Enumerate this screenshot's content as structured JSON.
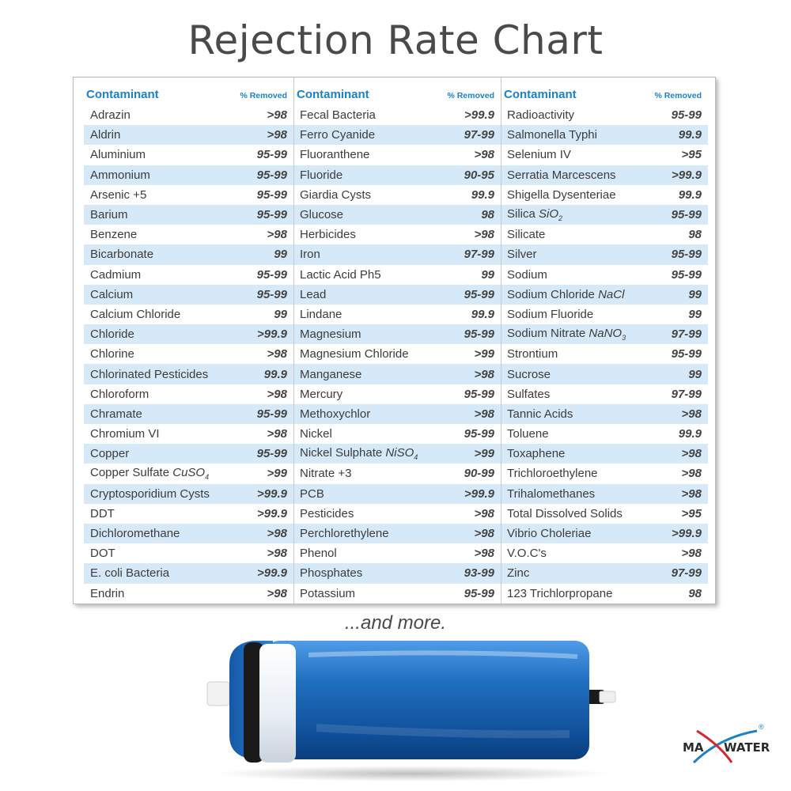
{
  "title": "Rejection Rate Chart",
  "header": {
    "contaminant": "Contaminant",
    "removed": "% Removed"
  },
  "columns": [
    {
      "rows": [
        {
          "name": "Adrazin",
          "value": ">98"
        },
        {
          "name": "Aldrin",
          "value": ">98"
        },
        {
          "name": "Aluminium",
          "value": "95-99"
        },
        {
          "name": "Ammonium",
          "value": "95-99"
        },
        {
          "name": "Arsenic +5",
          "value": "95-99"
        },
        {
          "name": "Barium",
          "value": "95-99"
        },
        {
          "name": "Benzene",
          "value": ">98"
        },
        {
          "name": "Bicarbonate",
          "value": "99"
        },
        {
          "name": "Cadmium",
          "value": "95-99"
        },
        {
          "name": "Calcium",
          "value": "95-99"
        },
        {
          "name": "Calcium Chloride",
          "value": "99"
        },
        {
          "name": "Chloride",
          "value": ">99.9"
        },
        {
          "name": "Chlorine",
          "value": ">98"
        },
        {
          "name": "Chlorinated Pesticides",
          "value": "99.9"
        },
        {
          "name": "Chloroform",
          "value": ">98"
        },
        {
          "name": "Chramate",
          "value": "95-99"
        },
        {
          "name": "Chromium VI",
          "value": ">98"
        },
        {
          "name": "Copper",
          "value": "95-99"
        },
        {
          "name": "Copper Sulfate",
          "formula": "CuSO",
          "sub": "4",
          "value": ">99"
        },
        {
          "name": "Cryptosporidium Cysts",
          "value": ">99.9"
        },
        {
          "name": "DDT",
          "value": ">99.9"
        },
        {
          "name": "Dichloromethane",
          "value": ">98"
        },
        {
          "name": "DOT",
          "value": ">98"
        },
        {
          "name": "E. coli Bacteria",
          "value": ">99.9"
        },
        {
          "name": "Endrin",
          "value": ">98"
        }
      ]
    },
    {
      "rows": [
        {
          "name": "Fecal Bacteria",
          "value": ">99.9"
        },
        {
          "name": "Ferro Cyanide",
          "value": "97-99"
        },
        {
          "name": "Fluoranthene",
          "value": ">98"
        },
        {
          "name": "Fluoride",
          "value": "90-95"
        },
        {
          "name": "Giardia Cysts",
          "value": "99.9"
        },
        {
          "name": "Glucose",
          "value": "98"
        },
        {
          "name": "Herbicides",
          "value": ">98"
        },
        {
          "name": "Iron",
          "value": "97-99"
        },
        {
          "name": "Lactic Acid Ph5",
          "value": "99"
        },
        {
          "name": "Lead",
          "value": "95-99"
        },
        {
          "name": "Lindane",
          "value": "99.9"
        },
        {
          "name": "Magnesium",
          "value": "95-99"
        },
        {
          "name": "Magnesium Chloride",
          "value": ">99"
        },
        {
          "name": "Manganese",
          "value": ">98"
        },
        {
          "name": "Mercury",
          "value": "95-99"
        },
        {
          "name": "Methoxychlor",
          "value": ">98"
        },
        {
          "name": "Nickel",
          "value": "95-99"
        },
        {
          "name": "Nickel Sulphate",
          "formula": "NiSO",
          "sub": "4",
          "value": ">99"
        },
        {
          "name": "Nitrate +3",
          "value": "90-99"
        },
        {
          "name": "PCB",
          "value": ">99.9"
        },
        {
          "name": "Pesticides",
          "value": ">98"
        },
        {
          "name": "Perchlorethylene",
          "value": ">98"
        },
        {
          "name": "Phenol",
          "value": ">98"
        },
        {
          "name": "Phosphates",
          "value": "93-99"
        },
        {
          "name": "Potassium",
          "value": "95-99"
        }
      ]
    },
    {
      "rows": [
        {
          "name": "Radioactivity",
          "value": "95-99"
        },
        {
          "name": "Salmonella Typhi",
          "value": "99.9"
        },
        {
          "name": "Selenium IV",
          "value": ">95"
        },
        {
          "name": "Serratia Marcescens",
          "value": ">99.9"
        },
        {
          "name": "Shigella Dysenteriae",
          "value": "99.9"
        },
        {
          "name": "Silica",
          "formula": "SiO",
          "sub": "2",
          "value": "95-99"
        },
        {
          "name": "Silicate",
          "value": "98"
        },
        {
          "name": "Silver",
          "value": "95-99"
        },
        {
          "name": "Sodium",
          "value": "95-99"
        },
        {
          "name": "Sodium Chloride",
          "formula": "NaCl",
          "sub": "",
          "value": "99"
        },
        {
          "name": "Sodium Fluoride",
          "value": "99"
        },
        {
          "name": "Sodium Nitrate",
          "formula": "NaNO",
          "sub": "3",
          "value": "97-99"
        },
        {
          "name": "Strontium",
          "value": "95-99"
        },
        {
          "name": "Sucrose",
          "value": "99"
        },
        {
          "name": "Sulfates",
          "value": "97-99"
        },
        {
          "name": "Tannic Acids",
          "value": ">98"
        },
        {
          "name": "Toluene",
          "value": "99.9"
        },
        {
          "name": "Toxaphene",
          "value": ">98"
        },
        {
          "name": "Trichloroethylene",
          "value": ">98"
        },
        {
          "name": "Trihalomethanes",
          "value": ">98"
        },
        {
          "name": "Total Dissolved Solids",
          "value": ">95"
        },
        {
          "name": "Vibrio Choleriae",
          "value": ">99.9"
        },
        {
          "name": "V.O.C's",
          "value": ">98"
        },
        {
          "name": "Zinc",
          "value": "97-99"
        },
        {
          "name": "123 Trichlorpropane",
          "value": "98"
        }
      ]
    }
  ],
  "footer_note": "...and more.",
  "logo": {
    "left": "MA",
    "right": "WATER",
    "registered": "®"
  },
  "colors": {
    "accent": "#1b82c9",
    "row_stripe": "#d6e9f8",
    "membrane": "#1f6fc0"
  }
}
